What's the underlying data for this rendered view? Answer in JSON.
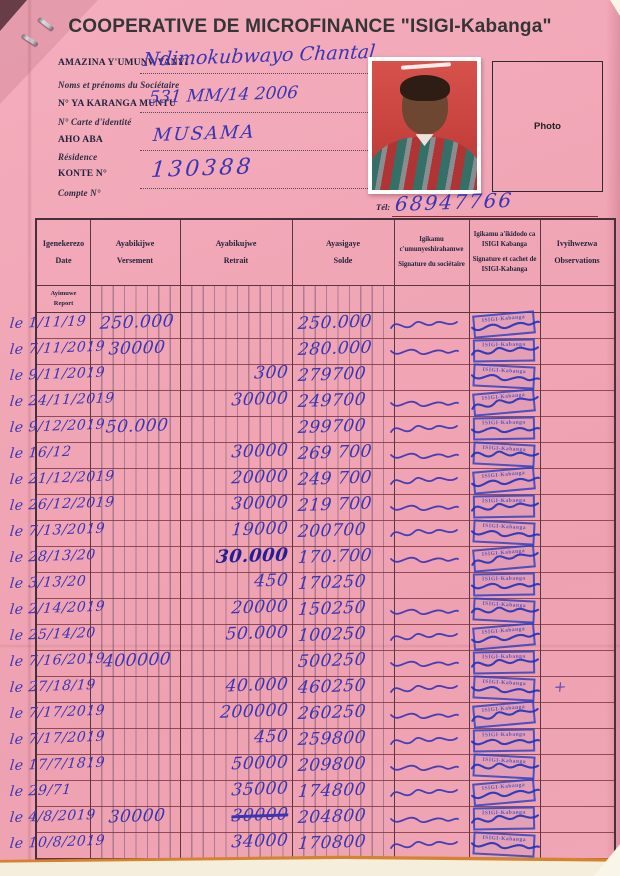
{
  "page_title": "COOPERATIVE DE MICROFINANCE \"ISIGI-Kabanga\"",
  "fields": {
    "name_label_rn": "AMAZINA Y'UMUNWYANYI",
    "name_label_fr": "Noms et prénoms du Sociétaire",
    "name_value": "Ndimokubwayo Chantal",
    "id_label_rn": "N° YA KARANGA MUNTU",
    "id_label_fr": "N° Carte d'identité",
    "id_value": "531 MM/14 2006",
    "residence_label_rn": "AHO ABA",
    "residence_label_fr": "Résidence",
    "residence_value": "MUSAMA",
    "account_label_rn": "KONTE N°",
    "account_label_fr": "Compte N°",
    "account_value": "130388",
    "tel_label": "Tél:",
    "tel_value": "68947766",
    "photo_label": "Photo"
  },
  "table": {
    "headers": [
      {
        "rn": "Igenekerezo",
        "fr": "Date"
      },
      {
        "rn": "Ayabikijwe",
        "fr": "Versement"
      },
      {
        "rn": "Ayabikujwe",
        "fr": "Retrait"
      },
      {
        "rn": "Ayasigaye",
        "fr": "Solde"
      },
      {
        "rn": "Igikamu c'umunyeshirahamwe",
        "fr": "Signature du sociétaire"
      },
      {
        "rn": "Igikamu a'ikidodo ca ISIGI Kabanga",
        "fr": "Signature et cachet de ISIGI-Kabanga"
      },
      {
        "rn": "Ivyihwezwa",
        "fr": "Observations"
      }
    ],
    "report_row": {
      "rn": "Ayimuwe",
      "fr": "Report"
    },
    "stamp_text": "ISIGI-Kabanga",
    "rows": [
      {
        "d": "le 1/11/19",
        "v": "250.000",
        "r": "",
        "s": "250.000",
        "sig": true
      },
      {
        "d": "le 7/11/2019",
        "v": "30000",
        "r": "",
        "s": "280.000",
        "sig": true
      },
      {
        "d": "le 9/11/2019",
        "v": "",
        "r": "300",
        "s": "279700",
        "sig": false
      },
      {
        "d": "le 24/11/2019",
        "v": "",
        "r": "30000",
        "s": "249700",
        "sig": true
      },
      {
        "d": "le 9/12/2019",
        "v": "50.000",
        "r": "",
        "s": "299700",
        "sig": true
      },
      {
        "d": "le 16/12",
        "v": "",
        "r": "30000",
        "s": "269 700",
        "sig": true
      },
      {
        "d": "le 21/12/2019",
        "v": "",
        "r": "20000",
        "s": "249 700",
        "sig": true
      },
      {
        "d": "le 26/12/2019",
        "v": "",
        "r": "30000",
        "s": "219 700",
        "sig": true
      },
      {
        "d": "le 7/13/2019",
        "v": "",
        "r": "19000",
        "s": "200700",
        "sig": true
      },
      {
        "d": "le 28/13/20",
        "v": "",
        "r": "30.000",
        "s": "170.700",
        "sig": true,
        "bold": true
      },
      {
        "d": "le 3/13/20",
        "v": "",
        "r": "450",
        "s": "170250",
        "sig": false
      },
      {
        "d": "le 2/14/2019",
        "v": "",
        "r": "20000",
        "s": "150250",
        "sig": true
      },
      {
        "d": "le 25/14/20",
        "v": "",
        "r": "50.000",
        "s": "100250",
        "sig": true
      },
      {
        "d": "le 7/16/2019",
        "v": "400000",
        "r": "",
        "s": "500250",
        "sig": true
      },
      {
        "d": "le 27/18/19",
        "v": "",
        "r": "40.000",
        "s": "460250",
        "sig": true,
        "obs": "+"
      },
      {
        "d": "le 7/17/2019",
        "v": "",
        "r": "200000",
        "s": "260250",
        "sig": true
      },
      {
        "d": "le 7/17/2019",
        "v": "",
        "r": "450",
        "s": "259800",
        "sig": true
      },
      {
        "d": "le 17/7/1819",
        "v": "",
        "r": "50000",
        "s": "209800",
        "sig": true
      },
      {
        "d": "le 29/71",
        "v": "",
        "r": "35000",
        "s": "174800",
        "sig": true
      },
      {
        "d": "le 4/8/2019",
        "v": "30000",
        "r": "30000",
        "s": "204800",
        "sig": true,
        "struck": true
      },
      {
        "d": "le 10/8/2019",
        "v": "",
        "r": "34000",
        "s": "170800",
        "sig": true
      }
    ]
  },
  "colors": {
    "paper_pink": "#f0a5b5",
    "ink_blue": "#3a35b4",
    "stamp_blue": "#2a3cc0",
    "table_line": "#583642",
    "underline_red": "#8a2a35"
  }
}
